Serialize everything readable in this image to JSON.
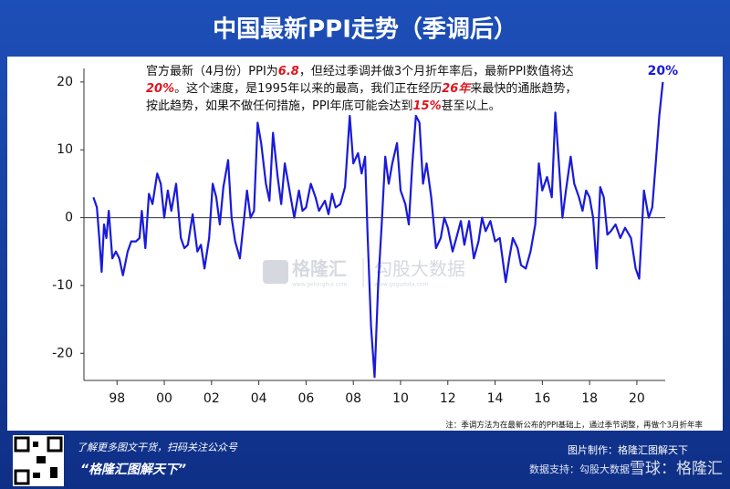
{
  "chart_data": {
    "type": "line",
    "title": "中国最新PPI走势（季调后）",
    "annotation": [
      [
        {
          "text": "官方最新（4月份）PPI为"
        },
        {
          "text": "6.8",
          "highlight": true
        },
        {
          "text": "，但经过季调并做3个月折年率后，最新PPI数值将达"
        }
      ],
      [
        {
          "text": "20%",
          "highlight": true
        },
        {
          "text": "。这个速度，是1995年以来的最高，我们正在经历"
        },
        {
          "text": "26年",
          "highlight": true
        },
        {
          "text": "来最快的通胀趋势，"
        }
      ],
      [
        {
          "text": "按此趋势，如果不做任何措施，PPI年底可能会达到"
        },
        {
          "text": "15%",
          "highlight": true
        },
        {
          "text": "甚至以上。"
        }
      ]
    ],
    "end_label": "20%",
    "note": "注：季调方法为在最新公布的PPI基础上，通过季节调整，再做个3月折年率",
    "color": "#1a1adb",
    "zero_line": true,
    "x": [
      1997.0,
      1997.15,
      1997.25,
      1997.35,
      1997.45,
      1997.55,
      1997.65,
      1997.8,
      1997.95,
      1998.1,
      1998.25,
      1998.45,
      1998.6,
      1998.8,
      1998.95,
      1999.05,
      1999.2,
      1999.35,
      1999.5,
      1999.7,
      1999.85,
      2000.0,
      2000.15,
      2000.3,
      2000.5,
      2000.7,
      2000.85,
      2001.0,
      2001.2,
      2001.4,
      2001.55,
      2001.7,
      2001.9,
      2002.05,
      2002.2,
      2002.35,
      2002.5,
      2002.7,
      2002.85,
      2003.0,
      2003.2,
      2003.35,
      2003.5,
      2003.65,
      2003.8,
      2003.95,
      2004.1,
      2004.3,
      2004.45,
      2004.6,
      2004.8,
      2004.95,
      2005.1,
      2005.3,
      2005.5,
      2005.7,
      2005.85,
      2006.0,
      2006.2,
      2006.4,
      2006.55,
      2006.8,
      2006.95,
      2007.1,
      2007.25,
      2007.45,
      2007.65,
      2007.85,
      2008.0,
      2008.2,
      2008.35,
      2008.5,
      2008.6,
      2008.75,
      2008.9,
      2009.05,
      2009.2,
      2009.35,
      2009.5,
      2009.65,
      2009.85,
      2010.0,
      2010.2,
      2010.35,
      2010.5,
      2010.65,
      2010.8,
      2010.95,
      2011.1,
      2011.3,
      2011.5,
      2011.7,
      2011.85,
      2012.0,
      2012.2,
      2012.4,
      2012.55,
      2012.7,
      2012.9,
      2013.1,
      2013.3,
      2013.45,
      2013.6,
      2013.8,
      2014.0,
      2014.2,
      2014.45,
      2014.6,
      2014.75,
      2014.95,
      2015.1,
      2015.3,
      2015.5,
      2015.7,
      2015.85,
      2016.0,
      2016.2,
      2016.4,
      2016.55,
      2016.7,
      2016.85,
      2017.0,
      2017.2,
      2017.35,
      2017.55,
      2017.7,
      2017.85,
      2018.0,
      2018.15,
      2018.3,
      2018.45,
      2018.6,
      2018.75,
      2018.9,
      2019.1,
      2019.3,
      2019.5,
      2019.75,
      2019.95,
      2020.1,
      2020.3,
      2020.5,
      2020.65,
      2020.8,
      2020.95,
      2021.1
    ],
    "values": [
      3,
      1.5,
      -3,
      -8,
      -1,
      -3,
      1,
      -6,
      -5,
      -6,
      -8.5,
      -5,
      -3.5,
      -3.5,
      -3,
      1,
      -4.5,
      3.5,
      2,
      6.5,
      5,
      0,
      4,
      1,
      5,
      -3,
      -4.5,
      -4,
      0.5,
      -5,
      -4,
      -7.5,
      -3,
      5,
      3,
      -1,
      4.5,
      8.5,
      0,
      -3.5,
      -6,
      -1,
      4,
      0,
      1,
      14,
      11,
      5,
      2.5,
      12.5,
      6,
      2,
      8,
      4,
      0,
      4,
      1,
      1.5,
      5,
      3,
      1,
      2.5,
      0.5,
      3.5,
      1.5,
      2,
      4.5,
      15,
      8,
      9.5,
      6.5,
      9,
      -2,
      -16,
      -23.5,
      -10,
      -1,
      9,
      5,
      8,
      11,
      4,
      2,
      -1,
      8,
      15,
      14,
      5,
      8,
      3,
      -4.5,
      -3,
      0,
      -1.5,
      -5,
      -2.5,
      -0.5,
      -4,
      -0.5,
      -6,
      -3.5,
      0,
      -2,
      -0.5,
      -3.5,
      -3,
      -9.5,
      -6,
      -3,
      -4.5,
      -7,
      -7.5,
      -5,
      -1,
      8,
      4,
      6,
      3,
      15.5,
      8,
      0,
      4,
      9,
      5,
      3,
      1,
      4,
      3,
      0,
      -7.5,
      4.5,
      3,
      -2.5,
      -2,
      -1,
      -3,
      -1.5,
      -3,
      -7.5,
      -9,
      4,
      0,
      1.5,
      8,
      15,
      20
    ],
    "xlim": [
      1996.6,
      2021.2
    ],
    "ylim": [
      -24,
      22
    ],
    "yticks": [
      -20,
      -10,
      0,
      10,
      20
    ],
    "xticks": [
      {
        "value": 1998,
        "label": "98"
      },
      {
        "value": 2000,
        "label": "00"
      },
      {
        "value": 2002,
        "label": "02"
      },
      {
        "value": 2004,
        "label": "04"
      },
      {
        "value": 2006,
        "label": "06"
      },
      {
        "value": 2008,
        "label": "08"
      },
      {
        "value": 2010,
        "label": "10"
      },
      {
        "value": 2012,
        "label": "12"
      },
      {
        "value": 2014,
        "label": "14"
      },
      {
        "value": 2016,
        "label": "16"
      },
      {
        "value": 2018,
        "label": "18"
      },
      {
        "value": 2020,
        "label": "20"
      }
    ]
  },
  "watermark": {
    "brand": "格隆汇",
    "brand_url": "www.gelonghui.com",
    "data_brand": "勾股大数据",
    "data_url": "www.gogudata.com"
  },
  "footer": {
    "promo": "了解更多图文干货，扫码关注公众号",
    "account": "“格隆汇图解天下”",
    "credit": "图片制作：格隆汇图解天下",
    "data_source": "数据支持：勾股大数据",
    "stamp": "雪球：格隆汇"
  }
}
